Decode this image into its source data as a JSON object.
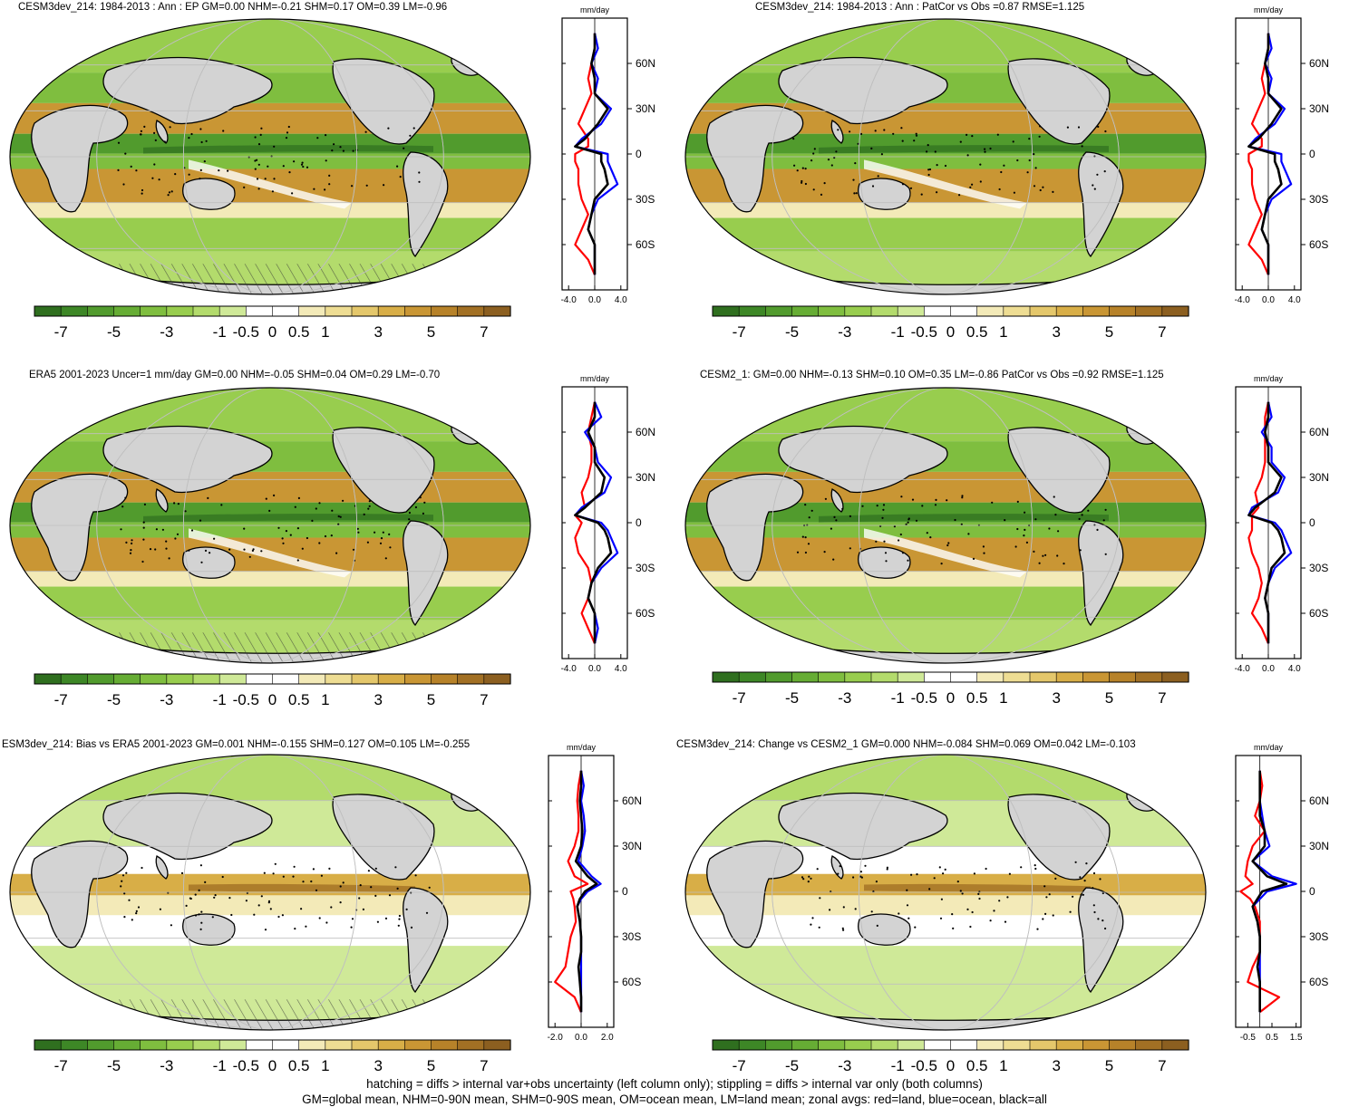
{
  "panels": [
    {
      "id": "p1",
      "title": "CESM3dev_214: 1984-2013 : Ann : EP GM=0.00 NHM=-0.21 SHM=0.17 OM=0.39 LM=-0.96",
      "hatch": true,
      "zonal_unit": "mm/day",
      "zonal_xticks": [
        "-4.0",
        "0.0",
        "4.0"
      ],
      "zonal_xlim": [
        -5,
        5
      ]
    },
    {
      "id": "p2",
      "title": "CESM3dev_214: 1984-2013 : Ann : PatCor vs Obs =0.87 RMSE=1.125",
      "hatch": false,
      "zonal_unit": "mm/day",
      "zonal_xticks": [
        "-4.0",
        "0.0",
        "4.0"
      ],
      "zonal_xlim": [
        -5,
        5
      ]
    },
    {
      "id": "p3",
      "title": "ERA5 2001-2023 Uncer=1 mm/day GM=0.00 NHM=-0.05 SHM=0.04 OM=0.29 LM=-0.70",
      "hatch": true,
      "zonal_unit": "mm/day",
      "zonal_xticks": [
        "-4.0",
        "0.0",
        "4.0"
      ],
      "zonal_xlim": [
        -5,
        5
      ]
    },
    {
      "id": "p4",
      "title": "CESM2_1: GM=0.00 NHM=-0.13 SHM=0.10 OM=0.35 LM=-0.86 PatCor vs Obs =0.92 RMSE=1.125",
      "hatch": false,
      "zonal_unit": "mm/day",
      "zonal_xticks": [
        "-4.0",
        "0.0",
        "4.0"
      ],
      "zonal_xlim": [
        -5,
        5
      ]
    },
    {
      "id": "p5",
      "title": "ESM3dev_214: Bias vs ERA5 2001-2023 GM=0.001 NHM=-0.155 SHM=0.127 OM=0.105 LM=-0.255",
      "hatch": true,
      "zonal_unit": "mm/day",
      "zonal_xticks": [
        "-2.0",
        "0.0",
        "2.0"
      ],
      "zonal_xlim": [
        -2.5,
        2.5
      ]
    },
    {
      "id": "p6",
      "title": "CESM3dev_214: Change vs CESM2_1 GM=0.000 NHM=-0.084 SHM=0.069 OM=0.042 LM=-0.103",
      "hatch": false,
      "zonal_unit": "mm/day",
      "zonal_xticks": [
        "-0.5",
        "0.5",
        "1.5"
      ],
      "zonal_xlim": [
        -1,
        1.7
      ]
    }
  ],
  "zonal_lat_labels": [
    "60N",
    "30N",
    "0",
    "30S",
    "60S"
  ],
  "colorbar_labels": [
    "-7",
    "-5",
    "-3",
    "-1",
    "-0.5",
    "0",
    "0.5",
    "1",
    "3",
    "5",
    "7"
  ],
  "colorbar_colors": [
    "#2f6f1f",
    "#3d8726",
    "#519b2d",
    "#66ad34",
    "#7fbe3f",
    "#98cd4e",
    "#b3db6c",
    "#cfe998",
    "#ffffff",
    "#ffffff",
    "#f3eab8",
    "#eedd93",
    "#e4c76b",
    "#d8ae47",
    "#c99634",
    "#b78229",
    "#a27024",
    "#8c5f20"
  ],
  "zonal_series": [
    {
      "name": "land",
      "color": "#ff0000"
    },
    {
      "name": "ocean",
      "color": "#0000ff"
    },
    {
      "name": "all",
      "color": "#000000"
    }
  ],
  "chart_data": {
    "type": "heatmap",
    "zonal_lat": [
      80,
      70,
      60,
      50,
      40,
      30,
      20,
      10,
      5,
      0,
      -5,
      -10,
      -20,
      -30,
      -40,
      -50,
      -60,
      -70,
      -80
    ],
    "zonal_profiles": {
      "p1": {
        "land": [
          0,
          0,
          -0.5,
          -1,
          -0.5,
          -1.5,
          -2.5,
          -1,
          -1,
          -3,
          -3,
          -2.5,
          -2.5,
          -2,
          -1,
          -2,
          -3,
          -1,
          0
        ],
        "ocean": [
          0,
          0.5,
          -0.5,
          0.5,
          0,
          2.5,
          1,
          -2,
          -3,
          2,
          2,
          2.5,
          3.5,
          0.5,
          -0.5,
          -1,
          0,
          0,
          0
        ],
        "all": [
          0,
          0,
          -0.5,
          0,
          0,
          2,
          0.5,
          -1.5,
          -3,
          1,
          1,
          1.5,
          2,
          0,
          -0.5,
          -1,
          0,
          0,
          0
        ]
      },
      "p2": {
        "land": [
          0,
          0,
          -0.5,
          -1,
          -0.5,
          -1.5,
          -2.5,
          -1,
          -1,
          -3,
          -3,
          -2.5,
          -2.5,
          -2,
          -1,
          -2,
          -3,
          -1,
          0
        ],
        "ocean": [
          0,
          0.5,
          -0.5,
          0.5,
          0,
          2.5,
          1,
          -2,
          -3,
          2,
          2,
          2.5,
          3.5,
          0.5,
          -0.5,
          -1,
          0,
          0,
          0
        ],
        "all": [
          0,
          0,
          -0.5,
          0,
          0,
          2,
          0.5,
          -1.5,
          -3,
          1,
          1,
          1.5,
          2,
          0,
          -0.5,
          -1,
          0,
          0,
          0
        ]
      },
      "p3": {
        "land": [
          0,
          -0.5,
          -1,
          -0.5,
          -0.5,
          -1,
          -2,
          -1.5,
          -3,
          -2,
          -2.5,
          -3,
          -2.5,
          -1,
          -0.5,
          -1,
          -2,
          -1,
          0
        ],
        "ocean": [
          0,
          1,
          -1.5,
          0,
          0.5,
          2.5,
          1.5,
          -2,
          -3,
          1,
          2,
          2.5,
          3.5,
          1,
          -0.5,
          -1,
          0,
          0.5,
          0
        ],
        "all": [
          0,
          0,
          -1,
          0,
          0,
          1.5,
          1,
          -1.5,
          -3,
          0.5,
          1.5,
          2,
          2.5,
          0.5,
          -0.5,
          -1,
          0,
          0,
          0
        ]
      },
      "p4": {
        "land": [
          0,
          -0.5,
          -0.5,
          -0.5,
          -0.5,
          -1,
          -2,
          -1.5,
          -2.5,
          -2.5,
          -2.5,
          -3,
          -2.5,
          -1.5,
          -1,
          -1.5,
          -2.5,
          -1,
          0
        ],
        "ocean": [
          0,
          0.5,
          -1,
          0.5,
          0.5,
          2.5,
          1.5,
          -2.5,
          -3,
          1,
          2,
          2.5,
          3.5,
          1,
          0,
          -0.5,
          0,
          0,
          0
        ],
        "all": [
          0,
          0,
          -0.5,
          0,
          0,
          2,
          1,
          -2,
          -3,
          0.5,
          1.5,
          2,
          2.5,
          0.5,
          0,
          -0.5,
          0,
          0,
          0
        ]
      },
      "p5": {
        "land": [
          0,
          -0.2,
          -0.3,
          -0.2,
          -0.2,
          -0.5,
          -1,
          -0.5,
          0.5,
          -0.8,
          -0.6,
          -0.5,
          -0.4,
          -0.8,
          -1,
          -1.2,
          -2,
          -0.5,
          0
        ],
        "ocean": [
          0,
          0.2,
          0,
          0.2,
          0.3,
          0.1,
          -0.2,
          0.8,
          1.5,
          0.5,
          0,
          -0.3,
          -0.1,
          0,
          0,
          0,
          0,
          0,
          0
        ],
        "all": [
          0,
          0,
          -0.1,
          0,
          0.1,
          0,
          -0.4,
          0.5,
          1.2,
          0.3,
          -0.1,
          -0.3,
          -0.1,
          0,
          0,
          -0.2,
          -0.1,
          0,
          0
        ]
      },
      "p6": {
        "land": [
          0,
          0.1,
          0,
          -0.2,
          0.2,
          -0.3,
          -0.5,
          -0.6,
          -0.3,
          -0.8,
          -0.4,
          -0.2,
          0,
          0,
          0,
          -0.3,
          -0.5,
          0.8,
          0
        ],
        "ocean": [
          0,
          0,
          0,
          0.1,
          0.2,
          0.4,
          -0.3,
          0.5,
          1.5,
          0.3,
          0,
          -0.3,
          -0.1,
          0,
          0,
          0,
          0,
          0,
          0
        ],
        "all": [
          0,
          0,
          0,
          0,
          0.2,
          0.2,
          -0.3,
          0.3,
          1.1,
          0.1,
          -0.1,
          -0.3,
          -0.1,
          0,
          0,
          -0.1,
          0,
          0,
          0
        ]
      }
    }
  },
  "footer": {
    "line1": "hatching = diffs > internal var+obs uncertainty (left column only); stippling = diffs > internal var only (both columns)",
    "line2": "GM=global mean, NHM=0-90N mean, SHM=0-90S mean, OM=ocean mean, LM=land mean; zonal avgs: red=land, blue=ocean, black=all"
  }
}
